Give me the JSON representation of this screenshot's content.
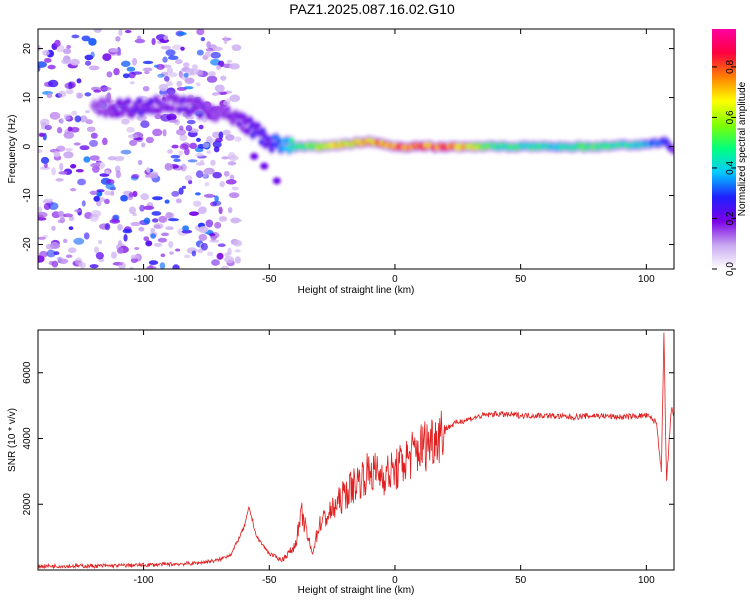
{
  "title": "PAZ1.2025.087.16.02.G10",
  "chart_data": [
    {
      "type": "heatmap",
      "xlabel": "Height of straight line (km)",
      "ylabel": "Frequency (Hz)",
      "xlim": [
        -142,
        111
      ],
      "ylim": [
        -25,
        24
      ],
      "xticks": [
        -100,
        -50,
        0,
        50,
        100
      ],
      "yticks": [
        -20,
        -10,
        0,
        10,
        20
      ],
      "colorbar": {
        "label": "Normalized spectral amplitude",
        "range": [
          0,
          0.95
        ],
        "ticks": [
          0.0,
          0.2,
          0.4,
          0.6,
          0.8
        ],
        "colors": [
          "#ffffff",
          "#c8a8f0",
          "#7a00e6",
          "#2020ff",
          "#00c8ff",
          "#00ff80",
          "#80ff00",
          "#ffff00",
          "#ff8000",
          "#ff0040",
          "#ff00a0"
        ]
      },
      "ridge": {
        "x": [
          -120,
          -110,
          -100,
          -90,
          -80,
          -70,
          -60,
          -55,
          -50,
          -45,
          -40,
          -30,
          -20,
          -10,
          0,
          10,
          20,
          40,
          60,
          80,
          100,
          108,
          111
        ],
        "y": [
          8,
          8,
          8,
          9,
          8,
          7,
          5,
          3,
          1,
          0,
          0,
          0,
          0.5,
          1,
          0,
          0,
          0,
          0,
          0,
          0,
          0.5,
          1,
          -1
        ],
        "value": [
          0.15,
          0.2,
          0.22,
          0.2,
          0.2,
          0.18,
          0.2,
          0.25,
          0.25,
          0.35,
          0.45,
          0.6,
          0.7,
          0.75,
          0.8,
          0.8,
          0.85,
          0.5,
          0.45,
          0.5,
          0.4,
          0.3,
          0.2
        ]
      },
      "secondary_branch": {
        "x": [
          -56,
          -52,
          -47
        ],
        "y": [
          -2,
          -4,
          -7
        ]
      },
      "noise_region_x": [
        -142,
        -68
      ]
    },
    {
      "type": "line",
      "xlabel": "Height of straight line (km)",
      "ylabel": "SNR (10 * v/v)",
      "xlim": [
        -142,
        111
      ],
      "ylim": [
        0,
        7300
      ],
      "xticks": [
        -100,
        -50,
        0,
        50,
        100
      ],
      "yticks": [
        2000,
        4000,
        6000
      ],
      "color": "#e02020",
      "x": [
        -142,
        -120,
        -100,
        -80,
        -70,
        -65,
        -60,
        -58,
        -55,
        -50,
        -45,
        -40,
        -37,
        -33,
        -30,
        -25,
        -20,
        -15,
        -10,
        -5,
        0,
        5,
        10,
        15,
        20,
        25,
        30,
        35,
        40,
        50,
        60,
        70,
        80,
        90,
        100,
        104,
        106,
        107,
        108,
        110,
        111
      ],
      "y": [
        120,
        120,
        150,
        200,
        300,
        500,
        1300,
        1900,
        1000,
        500,
        300,
        700,
        1700,
        500,
        1400,
        1800,
        2300,
        2700,
        3000,
        2900,
        3000,
        3400,
        3700,
        4000,
        4300,
        4500,
        4600,
        4700,
        4750,
        4700,
        4700,
        4650,
        4700,
        4650,
        4700,
        4500,
        3000,
        7200,
        2600,
        5000,
        4600
      ]
    }
  ]
}
